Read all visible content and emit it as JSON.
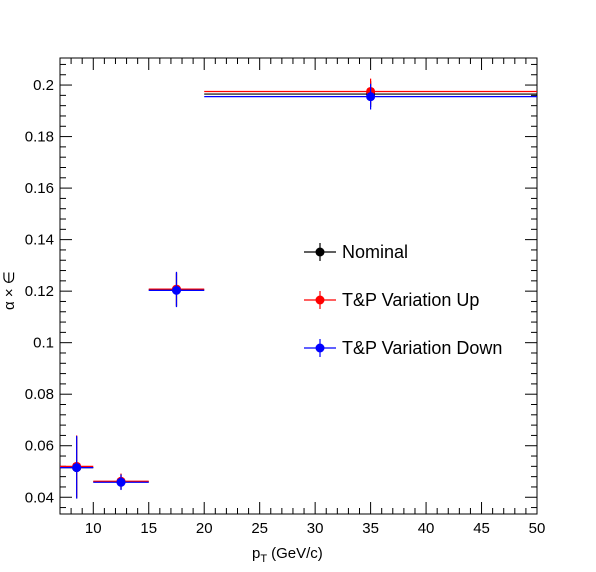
{
  "chart_data": {
    "type": "scatter",
    "xlabel": "p",
    "xlabel_sub": "T",
    "xlabel_unit": "(GeV/c)",
    "ylabel": "α × ∈",
    "xlim": [
      7,
      50
    ],
    "ylim": [
      0.0335,
      0.2105
    ],
    "x_ticks": [
      10,
      15,
      20,
      25,
      30,
      35,
      40,
      45,
      50
    ],
    "y_ticks": [
      0.04,
      0.06,
      0.08,
      0.1,
      0.12,
      0.14,
      0.16,
      0.18,
      0.2
    ],
    "y_tick_labels": [
      "0.04",
      "0.06",
      "0.08",
      "0.1",
      "0.12",
      "0.14",
      "0.16",
      "0.18",
      "0.2"
    ],
    "grid": false,
    "legend_position": "right-center",
    "series": [
      {
        "name": "Nominal",
        "color": "#000000",
        "points": [
          {
            "x": 8.5,
            "y": 0.0515,
            "xlo": 7,
            "xhi": 10,
            "ylo": 0.0395,
            "yhi": 0.0635
          },
          {
            "x": 12.5,
            "y": 0.046,
            "xlo": 10,
            "xhi": 15,
            "ylo": 0.043,
            "yhi": 0.049
          },
          {
            "x": 17.5,
            "y": 0.1205,
            "xlo": 15,
            "xhi": 20,
            "ylo": 0.114,
            "yhi": 0.127
          },
          {
            "x": 35,
            "y": 0.1965,
            "xlo": 20,
            "xhi": 50,
            "ylo": 0.1915,
            "yhi": 0.2015
          }
        ]
      },
      {
        "name": "T&P Variation Up",
        "color": "#ff0000",
        "points": [
          {
            "x": 8.5,
            "y": 0.052,
            "xlo": 7,
            "xhi": 10,
            "ylo": 0.04,
            "yhi": 0.064
          },
          {
            "x": 12.5,
            "y": 0.0462,
            "xlo": 10,
            "xhi": 15,
            "ylo": 0.0432,
            "yhi": 0.0492
          },
          {
            "x": 17.5,
            "y": 0.1208,
            "xlo": 15,
            "xhi": 20,
            "ylo": 0.1143,
            "yhi": 0.1273
          },
          {
            "x": 35,
            "y": 0.1975,
            "xlo": 20,
            "xhi": 50,
            "ylo": 0.1925,
            "yhi": 0.2025
          }
        ]
      },
      {
        "name": "T&P Variation Down",
        "color": "#0000ff",
        "points": [
          {
            "x": 8.5,
            "y": 0.0515,
            "xlo": 7,
            "xhi": 10,
            "ylo": 0.0395,
            "yhi": 0.0638
          },
          {
            "x": 12.5,
            "y": 0.0458,
            "xlo": 10,
            "xhi": 15,
            "ylo": 0.0428,
            "yhi": 0.0488
          },
          {
            "x": 17.5,
            "y": 0.1203,
            "xlo": 15,
            "xhi": 20,
            "ylo": 0.1138,
            "yhi": 0.1275
          },
          {
            "x": 35,
            "y": 0.1955,
            "xlo": 20,
            "xhi": 50,
            "ylo": 0.1905,
            "yhi": 0.2005
          }
        ]
      }
    ]
  }
}
